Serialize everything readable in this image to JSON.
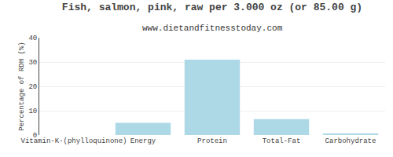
{
  "chart_data": {
    "type": "bar",
    "title": "Fish, salmon, pink, raw per 3.000 oz (or 85.00 g)",
    "subtitle": "www.dietandfitnesstoday.com",
    "categories": [
      "Vitamin-K-(phylloquinone)",
      "Energy",
      "Protein",
      "Total-Fat",
      "Carbohydrate"
    ],
    "values": [
      0,
      5,
      31,
      6.5,
      0.5
    ],
    "color": "#add8e6",
    "ylabel": "Percentage of RDH (%)",
    "ylim": [
      0,
      40
    ],
    "yticks": [
      0,
      10,
      20,
      30,
      40
    ],
    "grid": true
  }
}
